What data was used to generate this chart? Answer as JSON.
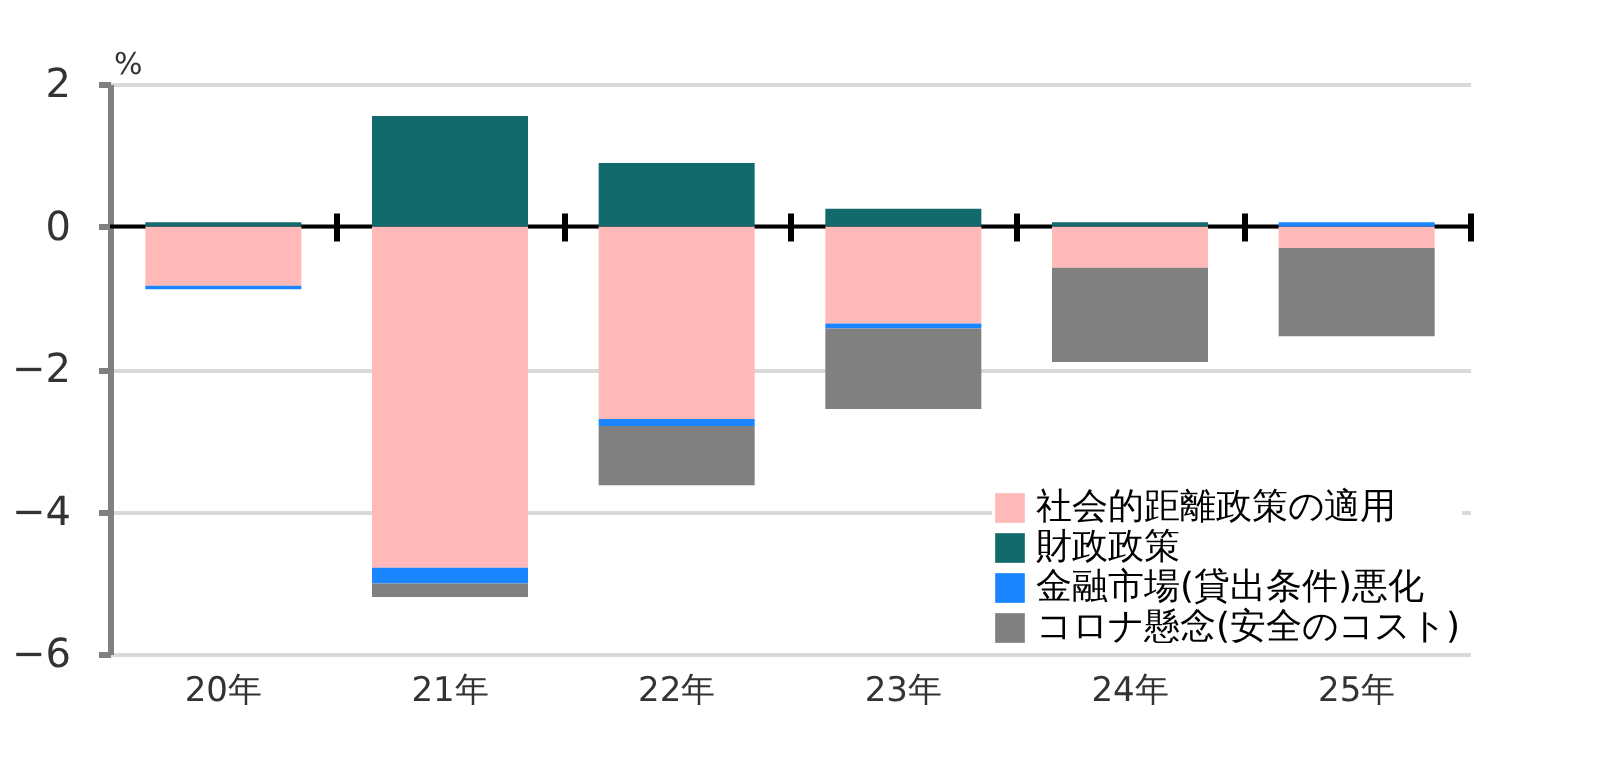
{
  "chart_data": {
    "type": "bar",
    "stacked": true,
    "ylabel": "%",
    "categories": [
      "20年",
      "21年",
      "22年",
      "23年",
      "24年",
      "25年"
    ],
    "series": [
      {
        "name": "社会的距離政策の適用",
        "color": "#ffb9b9",
        "values": [
          -0.83,
          -4.79,
          -2.7,
          -1.36,
          -0.58,
          -0.3
        ]
      },
      {
        "name": "財政政策",
        "color": "#136a6c",
        "values": [
          0.06,
          1.55,
          0.89,
          0.25,
          0.06,
          0
        ]
      },
      {
        "name": "金融市場(貸出条件)悪化",
        "color": "#1a85ff",
        "values": [
          -0.05,
          -0.22,
          -0.1,
          -0.07,
          0,
          0.06
        ]
      },
      {
        "name": "コロナ懸念(安全のコスト)",
        "color": "#808080",
        "values": [
          0,
          -0.19,
          -0.83,
          -1.13,
          -1.32,
          -1.24
        ]
      }
    ],
    "ylim": [
      -6,
      2
    ],
    "yticks": [
      -6,
      -4,
      -2,
      0,
      2
    ],
    "grid": "y",
    "legend": "bottom right"
  }
}
